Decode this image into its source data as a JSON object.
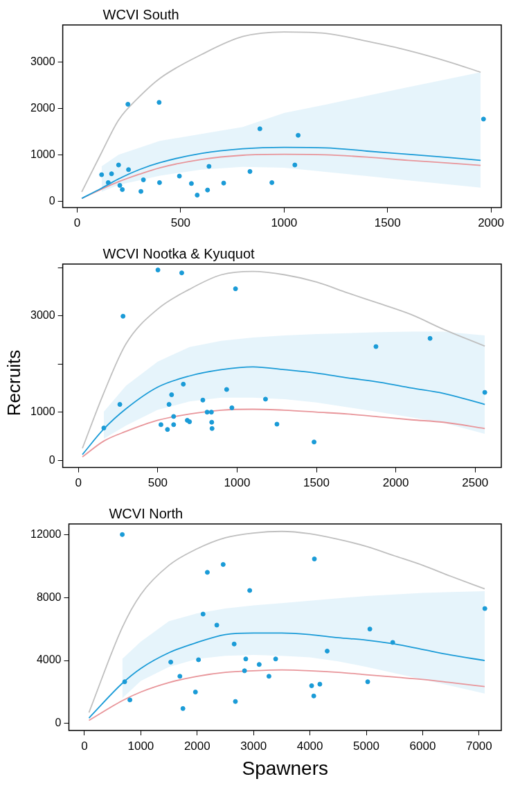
{
  "chart_data": [
    {
      "type": "scatter",
      "title": "WCVI South",
      "xlim": [
        -70,
        2050
      ],
      "ylim": [
        -140,
        3800
      ],
      "xticks": [
        0,
        500,
        1000,
        1500,
        2000
      ],
      "yticks": [
        0,
        1000,
        2000,
        3000
      ],
      "grid": false,
      "legend": false,
      "marker": "circle",
      "series": [
        {
          "color": "#1a9bd7",
          "x": [
            118,
            150,
            166,
            200,
            206,
            218,
            245,
            248,
            308,
            320,
            396,
            398,
            494,
            552,
            580,
            630,
            637,
            708,
            835,
            883,
            941,
            1052,
            1068,
            1964
          ],
          "values": [
            570,
            400,
            590,
            780,
            340,
            250,
            2090,
            680,
            210,
            460,
            2130,
            400,
            540,
            380,
            130,
            240,
            750,
            390,
            640,
            1560,
            400,
            780,
            1420,
            1770
          ]
        },
        {
          "type": "line",
          "marker": "none",
          "color": "#1a9bd7",
          "x": [
            22,
            118,
            200,
            300,
            400,
            600,
            800,
            1000,
            1200,
            1400,
            1600,
            1800,
            1950
          ],
          "values": [
            60,
            280,
            480,
            680,
            830,
            1030,
            1130,
            1160,
            1150,
            1080,
            1010,
            940,
            880
          ],
          "lower": [
            null,
            200,
            350,
            450,
            550,
            680,
            740,
            720,
            630,
            540,
            450,
            360,
            290
          ],
          "upper": [
            null,
            750,
            1000,
            1150,
            1300,
            1450,
            1600,
            1900,
            2080,
            2270,
            2460,
            2640,
            2780
          ]
        },
        {
          "type": "line",
          "marker": "none",
          "color": "#bfbfbf",
          "x": [
            22,
            118,
            200,
            300,
            400,
            600,
            800,
            1000,
            1200,
            1400,
            1600,
            1800,
            1950
          ],
          "values": [
            200,
            1050,
            1750,
            2250,
            2650,
            3160,
            3550,
            3650,
            3620,
            3450,
            3250,
            3000,
            2780
          ]
        },
        {
          "type": "line",
          "marker": "none",
          "color": "#e8959a",
          "x": [
            22,
            118,
            200,
            300,
            400,
            600,
            800,
            1000,
            1200,
            1400,
            1600,
            1800,
            1950
          ],
          "values": [
            60,
            260,
            420,
            580,
            720,
            900,
            990,
            1010,
            1000,
            950,
            880,
            820,
            770
          ]
        }
      ]
    },
    {
      "type": "scatter",
      "title": "WCVI Nootka & Kyuquot",
      "ylabel": "Recruits",
      "xlim": [
        -99,
        2665
      ],
      "ylim": [
        -150,
        4073
      ],
      "xticks": [
        0,
        500,
        1000,
        1500,
        2000,
        2500
      ],
      "yticks": [
        0,
        1000,
        {
          "value": 2000,
          "label": null
        },
        3000,
        {
          "value": 4000,
          "label": null
        }
      ],
      "grid": false,
      "legend": false,
      "marker": "circle",
      "series": [
        {
          "color": "#1a9bd7",
          "x": [
            160,
            261,
            281,
            501,
            520,
            561,
            571,
            587,
            600,
            600,
            651,
            661,
            686,
            700,
            784,
            811,
            838,
            840,
            842,
            934,
            967,
            990,
            1179,
            1251,
            1485,
            1875,
            2216,
            2561
          ],
          "values": [
            670,
            1160,
            2990,
            3950,
            740,
            640,
            1160,
            1360,
            910,
            740,
            3890,
            1580,
            830,
            800,
            1250,
            1000,
            1000,
            790,
            660,
            1470,
            1090,
            3560,
            1270,
            750,
            380,
            2360,
            2530,
            1410
          ]
        },
        {
          "type": "line",
          "marker": "none",
          "color": "#1a9bd7",
          "x": [
            25,
            160,
            300,
            500,
            700,
            900,
            1100,
            1300,
            1500,
            1700,
            1900,
            2100,
            2300,
            2561
          ],
          "values": [
            120,
            650,
            1070,
            1520,
            1750,
            1880,
            1940,
            1880,
            1810,
            1710,
            1620,
            1500,
            1390,
            1160
          ],
          "lower": [
            null,
            450,
            720,
            1050,
            1220,
            1300,
            1300,
            1270,
            1200,
            1100,
            1000,
            890,
            780,
            550
          ],
          "upper": [
            null,
            1010,
            1550,
            2050,
            2350,
            2480,
            2550,
            2590,
            2620,
            2640,
            2660,
            2670,
            2670,
            2590
          ]
        },
        {
          "type": "line",
          "marker": "none",
          "color": "#bfbfbf",
          "x": [
            25,
            160,
            300,
            500,
            700,
            900,
            1100,
            1300,
            1500,
            1700,
            1900,
            2100,
            2300,
            2561
          ],
          "values": [
            250,
            1400,
            2420,
            3140,
            3550,
            3850,
            3920,
            3850,
            3700,
            3470,
            3250,
            3020,
            2720,
            2370
          ]
        },
        {
          "type": "line",
          "marker": "none",
          "color": "#e8959a",
          "x": [
            25,
            160,
            300,
            500,
            700,
            900,
            1100,
            1300,
            1500,
            1700,
            1900,
            2100,
            2300,
            2561
          ],
          "values": [
            70,
            400,
            600,
            830,
            960,
            1040,
            1060,
            1040,
            1000,
            960,
            900,
            840,
            790,
            660
          ]
        }
      ]
    },
    {
      "type": "scatter",
      "title": "WCVI North",
      "xlabel": "Spawners",
      "xlim": [
        -276,
        7395
      ],
      "ylim": [
        -442,
        12674
      ],
      "xticks": [
        0,
        1000,
        2000,
        3000,
        4000,
        5000,
        6000,
        7000
      ],
      "yticks": [
        0,
        4000,
        8000,
        12000
      ],
      "grid": false,
      "legend": false,
      "marker": "circle",
      "series": [
        {
          "color": "#1a9bd7",
          "x": [
            671,
            714,
            806,
            1531,
            1693,
            1747,
            1969,
            2023,
            2104,
            2180,
            2348,
            2461,
            2656,
            2678,
            2840,
            2862,
            2932,
            3100,
            3273,
            3392,
            4030,
            4068,
            4079,
            4176,
            4306,
            5025,
            5063,
            5469,
            7103
          ],
          "values": [
            12000,
            2650,
            1500,
            3900,
            3000,
            950,
            2000,
            4050,
            6950,
            9600,
            6250,
            10100,
            5050,
            1400,
            3350,
            4100,
            8450,
            3750,
            3000,
            4100,
            2400,
            1750,
            10450,
            2500,
            4600,
            2650,
            6000,
            5150,
            7300
          ]
        },
        {
          "type": "line",
          "marker": "none",
          "color": "#1a9bd7",
          "x": [
            80,
            671,
            1000,
            1500,
            2000,
            2500,
            3000,
            3500,
            4000,
            4500,
            5000,
            5500,
            6000,
            6500,
            7100
          ],
          "values": [
            350,
            2550,
            3500,
            4500,
            5150,
            5650,
            5750,
            5750,
            5650,
            5450,
            5300,
            5050,
            4700,
            4350,
            4000
          ],
          "lower": [
            null,
            1600,
            2700,
            3600,
            4100,
            4300,
            4350,
            4300,
            4200,
            3950,
            3600,
            3200,
            2800,
            2400,
            1900
          ],
          "upper": [
            null,
            4100,
            5200,
            6500,
            7000,
            7300,
            7500,
            7650,
            7800,
            7950,
            8100,
            8200,
            8300,
            8350,
            8400
          ]
        },
        {
          "type": "line",
          "marker": "none",
          "color": "#bfbfbf",
          "x": [
            80,
            671,
            1000,
            1500,
            2000,
            2500,
            3000,
            3500,
            4000,
            4500,
            5000,
            5500,
            6000,
            6500,
            7100
          ],
          "values": [
            700,
            6100,
            8200,
            10050,
            11100,
            11800,
            12100,
            12200,
            12050,
            11700,
            11250,
            10650,
            10050,
            9350,
            8550
          ]
        },
        {
          "type": "line",
          "marker": "none",
          "color": "#e8959a",
          "x": [
            80,
            671,
            1000,
            1500,
            2000,
            2500,
            3000,
            3500,
            4000,
            4500,
            5000,
            5500,
            6000,
            6500,
            7100
          ],
          "values": [
            200,
            1450,
            2000,
            2600,
            3000,
            3250,
            3350,
            3400,
            3350,
            3250,
            3100,
            2950,
            2800,
            2600,
            2350
          ]
        }
      ]
    }
  ]
}
